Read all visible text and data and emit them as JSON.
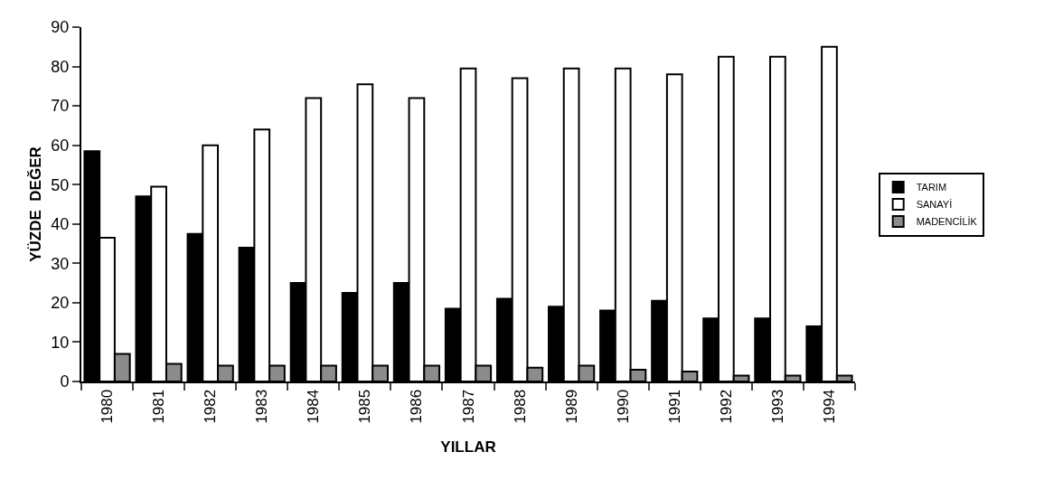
{
  "chart_data": {
    "type": "bar",
    "xlabel": "YILLAR",
    "ylabel": "YÜZDE  DEĞER",
    "categories": [
      "1980",
      "1981",
      "1982",
      "1983",
      "1984",
      "1985",
      "1986",
      "1987",
      "1988",
      "1989",
      "1990",
      "1991",
      "1992",
      "1993",
      "1994"
    ],
    "series": [
      {
        "name": "TARIM",
        "color": "#000000",
        "values": [
          58.5,
          47,
          37.5,
          34,
          25,
          22.5,
          25,
          18.5,
          21,
          19,
          18,
          20.5,
          16,
          16,
          14
        ]
      },
      {
        "name": "SANAYİ",
        "color": "#ffffff",
        "values": [
          36.5,
          49.5,
          60,
          64,
          72,
          75.5,
          72,
          79.5,
          77,
          79.5,
          79.5,
          78,
          82.5,
          82.5,
          85
        ]
      },
      {
        "name": "MADENCİLİK",
        "color": "#8c8c8c",
        "values": [
          7,
          4.5,
          4,
          4,
          4,
          4,
          4,
          4,
          3.5,
          4,
          3,
          2.5,
          1.5,
          1.5,
          1.5
        ]
      }
    ],
    "ylim": [
      0,
      90
    ],
    "yticks": [
      0,
      10,
      20,
      30,
      40,
      50,
      60,
      70,
      80,
      90
    ],
    "grid": false,
    "legend": "right"
  }
}
